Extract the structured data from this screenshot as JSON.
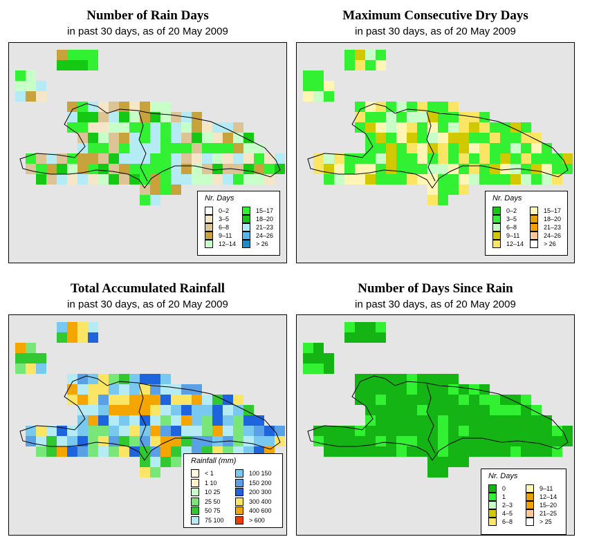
{
  "panels": [
    {
      "id": "rain-days",
      "title": "Number of Rain Days",
      "subtitle": "in past 30 days, as of  20 May 2009",
      "legend": {
        "title": "Nr. Days",
        "items": [
          {
            "label": "0–2",
            "color": "#ffffff"
          },
          {
            "label": "3–5",
            "color": "#f5e6c8"
          },
          {
            "label": "6–8",
            "color": "#dcc496"
          },
          {
            "label": "9–11",
            "color": "#c8a23c"
          },
          {
            "label": "12–14",
            "color": "#c8ffc8"
          },
          {
            "label": "15–17",
            "color": "#32f032"
          },
          {
            "label": "18–20",
            "color": "#14c814"
          },
          {
            "label": "21–23",
            "color": "#b4ebf5"
          },
          {
            "label": "24–26",
            "color": "#5ab4eb"
          },
          {
            "label": "> 26",
            "color": "#1e8cc8"
          }
        ]
      }
    },
    {
      "id": "max-dry-days",
      "title": "Maximum Consecutive Dry Days",
      "subtitle": "in past 30 days, as of  20 May 2009",
      "legend": {
        "title": "Nr. Days",
        "items": [
          {
            "label": "0–2",
            "color": "#14c814"
          },
          {
            "label": "3–5",
            "color": "#32f032"
          },
          {
            "label": "6–8",
            "color": "#c8ffc8"
          },
          {
            "label": "9–11",
            "color": "#d2c800"
          },
          {
            "label": "12–14",
            "color": "#fae664"
          },
          {
            "label": "15–17",
            "color": "#fff5b4"
          },
          {
            "label": "18–20",
            "color": "#e6a000"
          },
          {
            "label": "21–23",
            "color": "#f5a000"
          },
          {
            "label": "24–26",
            "color": "#ffc896"
          },
          {
            "label": "> 26",
            "color": "#ffffff"
          }
        ]
      }
    },
    {
      "id": "total-rainfall",
      "title": "Total Accumulated Rainfall",
      "subtitle": "in past 30 days, as of  20 May 2009",
      "legend": {
        "title": "Rainfall (mm)",
        "items": [
          {
            "label": "< 1",
            "color": "#fff8dc"
          },
          {
            "label": "1   10",
            "color": "#fff0c8"
          },
          {
            "label": "10   25",
            "color": "#c8ffc8"
          },
          {
            "label": "25   50",
            "color": "#78e678"
          },
          {
            "label": "50   75",
            "color": "#32c832"
          },
          {
            "label": "75   100",
            "color": "#b4ebf5"
          },
          {
            "label": "100   150",
            "color": "#78c8f0"
          },
          {
            "label": "150   200",
            "color": "#5aa0e6"
          },
          {
            "label": "200   300",
            "color": "#1e64dc"
          },
          {
            "label": "300   400",
            "color": "#fae664"
          },
          {
            "label": "400   600",
            "color": "#f5a500"
          },
          {
            "label": "> 600",
            "color": "#f03c00"
          }
        ]
      }
    },
    {
      "id": "days-since-rain",
      "title": "Number of Days Since Rain",
      "subtitle": "in past 30 days, as of  20 May 2009",
      "legend": {
        "title": "Nr. Days",
        "items": [
          {
            "label": "0",
            "color": "#14b414"
          },
          {
            "label": "1",
            "color": "#32f032"
          },
          {
            "label": "2–3",
            "color": "#c8ffc8"
          },
          {
            "label": "4–5",
            "color": "#d2c800"
          },
          {
            "label": "6–8",
            "color": "#fae664"
          },
          {
            "label": "9–11",
            "color": "#fff5b4"
          },
          {
            "label": "12–14",
            "color": "#e6a000"
          },
          {
            "label": "15–20",
            "color": "#f5a000"
          },
          {
            "label": "21–25",
            "color": "#ffc896"
          },
          {
            "label": "> 25",
            "color": "#ffffff"
          }
        ]
      }
    }
  ]
}
